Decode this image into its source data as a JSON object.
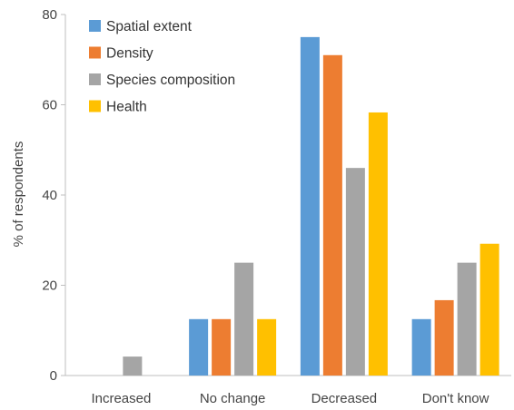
{
  "chart_data": {
    "type": "bar",
    "title": "",
    "xlabel": "",
    "ylabel": "% of respondents",
    "ylim": [
      0,
      80
    ],
    "yticks": [
      0,
      20,
      40,
      60,
      80
    ],
    "grid": false,
    "legend_position": "top-left",
    "categories": [
      "Increased",
      "No change",
      "Decreased",
      "Don't know"
    ],
    "series": [
      {
        "name": "Spatial extent",
        "color": "#5B9BD5",
        "values": [
          0,
          12.5,
          75,
          12.5
        ]
      },
      {
        "name": "Density",
        "color": "#ED7D31",
        "values": [
          0,
          12.5,
          71,
          16.7
        ]
      },
      {
        "name": "Species composition",
        "color": "#A5A5A5",
        "values": [
          4.2,
          25,
          46,
          25
        ]
      },
      {
        "name": "Health",
        "color": "#FFC000",
        "values": [
          0,
          12.5,
          58.3,
          29.2
        ]
      }
    ]
  }
}
